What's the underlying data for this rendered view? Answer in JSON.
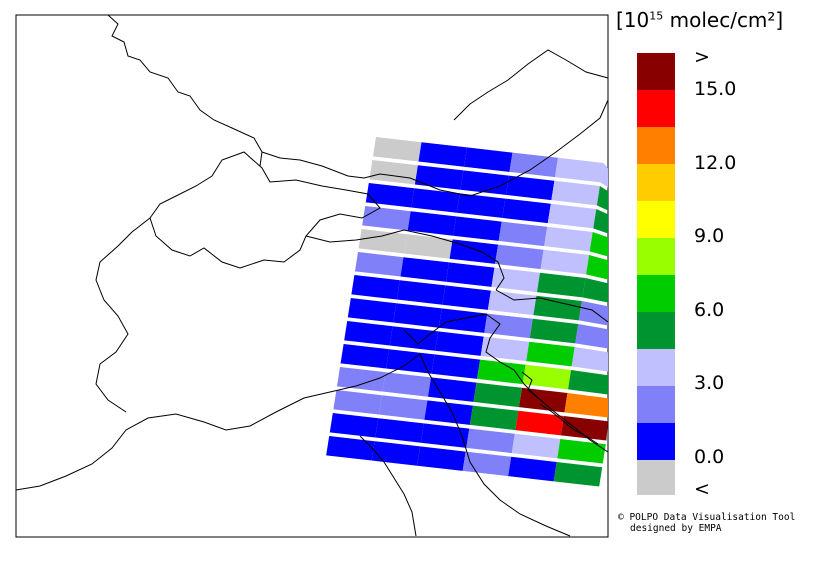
{
  "legend": {
    "title_prefix": "[10",
    "title_exponent": "15",
    "title_unit": " molec/cm²]",
    "tick_labels": [
      ">",
      "15.0",
      "12.0",
      "9.0",
      "6.0",
      "3.0",
      "0.0",
      "<"
    ],
    "bins": [
      {
        "color": "#cbcbcb",
        "range": "below 0.0"
      },
      {
        "color": "#0000ff",
        "range": "0.0–1.5"
      },
      {
        "color": "#8080f8",
        "range": "1.5–3.0"
      },
      {
        "color": "#c0c0ff",
        "range": "3.0–4.5"
      },
      {
        "color": "#009430",
        "range": "4.5–6.0"
      },
      {
        "color": "#00cc00",
        "range": "6.0–7.5"
      },
      {
        "color": "#99ff00",
        "range": "7.5–9.0"
      },
      {
        "color": "#ffff00",
        "range": "9.0–10.5"
      },
      {
        "color": "#ffcc00",
        "range": "10.5–12.0"
      },
      {
        "color": "#ff8000",
        "range": "12.0–13.5"
      },
      {
        "color": "#ff0000",
        "range": "13.5–15.0"
      },
      {
        "color": "#880000",
        "range": "above 15.0"
      }
    ]
  },
  "swath": {
    "rows": [
      [
        0,
        1,
        1,
        2,
        3,
        3
      ],
      [
        0,
        1,
        1,
        1,
        3,
        4
      ],
      [
        1,
        1,
        1,
        1,
        3,
        4
      ],
      [
        2,
        1,
        1,
        2,
        3,
        5
      ],
      [
        0,
        0,
        1,
        2,
        3,
        5
      ],
      [
        2,
        1,
        1,
        3,
        4,
        4
      ],
      [
        1,
        1,
        1,
        3,
        4,
        2
      ],
      [
        1,
        1,
        1,
        2,
        4,
        2
      ],
      [
        1,
        1,
        1,
        3,
        5,
        3
      ],
      [
        1,
        1,
        1,
        5,
        6,
        4
      ],
      [
        2,
        2,
        1,
        4,
        11,
        9
      ],
      [
        2,
        2,
        1,
        4,
        10,
        11
      ],
      [
        1,
        1,
        1,
        2,
        3,
        5
      ],
      [
        1,
        1,
        1,
        2,
        1,
        4
      ]
    ]
  },
  "credits": {
    "line1": "© POLPO Data Visualisation Tool",
    "line2": "designed by EMPA"
  }
}
